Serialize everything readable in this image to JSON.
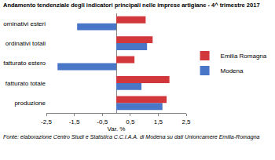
{
  "chart_data": {
    "type": "bar",
    "orientation": "horizontal",
    "title": "Andamento tendenziale degli indicatori principali nelle imprese artigiane - 4^ trimestre 2017",
    "source": "Fonte: elaborazione Centro Studi e Statistica C.C.I.A.A. di Modena su dati Unioncamere Emilia-Romagna",
    "categories": [
      "produzione",
      "fatturato totale",
      "fatturato estero",
      "ordinativi totali",
      "orninativi esteri"
    ],
    "series": [
      {
        "name": "Emilia Romagna",
        "color": "#d2373c",
        "values": [
          1.8,
          1.9,
          0.65,
          1.3,
          1.05
        ]
      },
      {
        "name": "Modena",
        "color": "#4a76c8",
        "values": [
          1.65,
          0.9,
          -2.1,
          1.1,
          -1.4
        ]
      }
    ],
    "xlabel": "Var. %",
    "xlim": [
      -2.5,
      2.5
    ],
    "xticks": [
      {
        "value": -2.5,
        "label": "-2,5"
      },
      {
        "value": -1.5,
        "label": "-1,5"
      },
      {
        "value": -0.5,
        "label": "-0,5"
      },
      {
        "value": 0.5,
        "label": "0,5"
      },
      {
        "value": 1.5,
        "label": "1,5"
      },
      {
        "value": 2.5,
        "label": "2,5"
      }
    ],
    "grid": false,
    "legend": "right"
  }
}
